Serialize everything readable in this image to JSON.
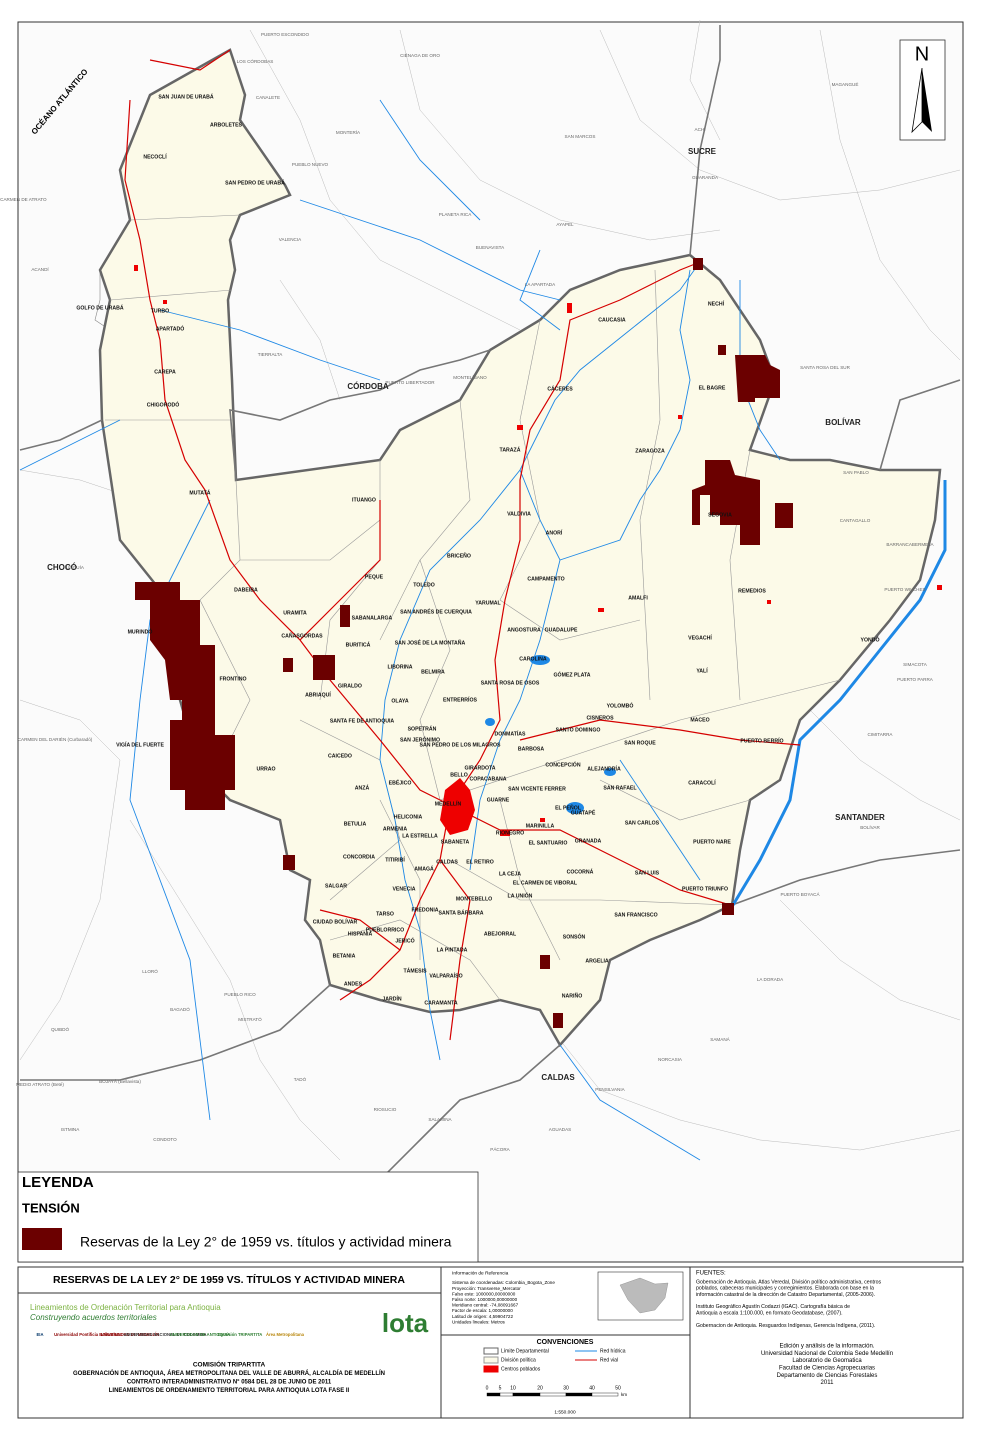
{
  "north_arrow": "N",
  "map": {
    "ocean": "OCÉANO ATLÁNTICO",
    "regions": [
      "CÓRDOBA",
      "SUCRE",
      "BOLÍVAR",
      "SANTANDER",
      "CALDAS",
      "CHOCÓ"
    ],
    "municipalities": [
      "SAN JUAN DE URABÁ",
      "ARBOLETES",
      "NECOCLÍ",
      "SAN PEDRO DE URABÁ",
      "GOLFO DE URABÁ",
      "TURBO",
      "APARTADÓ",
      "CAREPA",
      "CHIGORODÓ",
      "MUTATÁ",
      "DABEIBA",
      "URAMITA",
      "CAÑASGORDAS",
      "PEQUE",
      "ITUANGO",
      "TOLEDO",
      "BRICEÑO",
      "VALDIVIA",
      "TARAZÁ",
      "CÁCERES",
      "CAUCASIA",
      "NECHÍ",
      "EL BAGRE",
      "ZARAGOZA",
      "SEGOVIA",
      "ANORÍ",
      "CAMPAMENTO",
      "YARUMAL",
      "REMEDIOS",
      "AMALFI",
      "VEGACHÍ",
      "YALÍ",
      "YONDÓ",
      "GUADALUPE",
      "ANGOSTURA",
      "CAROLINA",
      "GÓMEZ PLATA",
      "SANTA ROSA DE OSOS",
      "YOLOMBÓ",
      "MACEO",
      "PUERTO BERRÍO",
      "CISNEROS",
      "SANTO DOMINGO",
      "SAN ROQUE",
      "CARACOLÍ",
      "DONMATÍAS",
      "BARBOSA",
      "CONCEPCIÓN",
      "ALEJANDRÍA",
      "SAN RAFAEL",
      "EL PEÑOL",
      "GUATAPÉ",
      "SAN CARLOS",
      "PUERTO NARE",
      "SAN LUIS",
      "PUERTO TRIUNFO",
      "SAN FRANCISCO",
      "COCORNÁ",
      "GRANADA",
      "MARINILLA",
      "RIONEGRO",
      "GUARNE",
      "SAN VICENTE FERRER",
      "MEDELLÍN",
      "BELLO",
      "COPACABANA",
      "GIRARDOTA",
      "LA ESTRELLA",
      "SABANETA",
      "CALDAS",
      "EL RETIRO",
      "LA CEJA",
      "EL SANTUARIO",
      "EL CARMEN DE VIBORAL",
      "LA UNIÓN",
      "SONSÓN",
      "ARGELIA",
      "NARIÑO",
      "ABEJORRAL",
      "MONTEBELLO",
      "SANTA BÁRBARA",
      "FREDONIA",
      "AMAGÁ",
      "TITIRIBÍ",
      "VENECIA",
      "HELICONIA",
      "ARMENIA",
      "EBÉJICO",
      "SOPETRÁN",
      "SAN JERÓNIMO",
      "SAN PEDRO DE LOS MILAGROS",
      "ENTRERRÍOS",
      "BELMIRA",
      "SAN JOSÉ DE LA MONTAÑA",
      "SAN ANDRÉS DE CUERQUIA",
      "SABANALARGA",
      "LIBORINA",
      "OLAYA",
      "BURITICÁ",
      "GIRALDO",
      "ABRIAQUÍ",
      "FRONTINO",
      "MURINDÓ",
      "VIGÍA DEL FUERTE",
      "URRAO",
      "SANTA FE DE ANTIOQUIA",
      "CAICEDO",
      "ANZÁ",
      "BETULIA",
      "CONCORDIA",
      "SALGAR",
      "CIUDAD BOLÍVAR",
      "HISPANIA",
      "BETANIA",
      "ANDES",
      "JARDÍN",
      "TÁMESIS",
      "VALPARAÍSO",
      "CARAMANTA",
      "LA PINTADA",
      "JERICÓ",
      "PUEBLORRICO",
      "TARSO"
    ],
    "outside_places": [
      "PUERTO ESCONDIDO",
      "LOS CÓRDOBAS",
      "CANALETE",
      "MONTERÍA",
      "CIÉNAGA DE ORO",
      "PLANETA RICA",
      "BUENAVISTA",
      "PUEBLO NUEVO",
      "TIERRALTA",
      "VALENCIA",
      "PUERTO LIBERTADOR",
      "MONTELÍBANO",
      "LA APARTADA",
      "AYAPEL",
      "SAN MARCOS",
      "GUARANDA",
      "ACHÍ",
      "MAGANGUÉ",
      "SANTA ROSA DEL SUR",
      "SAN PABLO",
      "CANTAGALLO",
      "BARRANCABERMEJA",
      "PUERTO WILCHES",
      "SIMACOTA",
      "CIMITARRA",
      "PUERTO PARRA",
      "BOLÍVAR",
      "PUERTO BOYACÁ",
      "LA DORADA",
      "SAMANÁ",
      "NORCASIA",
      "PENSILVANIA",
      "AGUADAS",
      "PÁCORA",
      "SALAMINA",
      "RIOSUCIO",
      "SUPÍA",
      "QUINCHÍA",
      "MISTRATÓ",
      "PUEBLO RICO",
      "BAGADÓ",
      "LLORÓ",
      "QUIBDÓ",
      "MEDIO ATRATO (Beté)",
      "BOJAYÁ (Bellavista)",
      "CARMEN DEL DARIÉN (Curbaradó)",
      "UNGUÍA",
      "ACANDÍ",
      "EL CARMEN DE ATRATO",
      "TADÓ",
      "CONDOTO",
      "ISTMINA"
    ]
  },
  "legend": {
    "title": "LEYENDA",
    "subtitle": "TENSIÓN",
    "item": "Reservas de la Ley 2° de 1959 vs. títulos y actividad minera"
  },
  "footer": {
    "title": "RESERVAS DE LA LEY 2° DE 1959 VS. TÍTULOS Y ACTIVIDAD MINERA",
    "project": "Lineamientos de Ordenación Territorial para Antioquia",
    "slogan": "Construyendo acuerdos territoriales",
    "logos": [
      "EIA",
      "Universidad Pontificia Bolivariana",
      "UNIVERSIDAD DE MEDELLÍN",
      "UNIVERSIDAD NACIONAL DE COLOMBIA",
      "UNIVERSIDAD DE ANTIOQUIA",
      "Comisión TRIPARTITA",
      "Área Metropolitana",
      "lota"
    ],
    "credits": [
      "COMISIÓN TRIPARTITA",
      "GOBERNACIÓN DE ANTIOQUIA, ÁREA METROPOLITANA DEL VALLE DE ABURRÁ, ALCALDÍA DE MEDELLÍN",
      "CONTRATO INTERADMINISTRATIVO  N° 0584 DEL 28 DE JUNIO DE 2011",
      "LINEAMIENTOS DE ORDENAMIENTO TERRITORIAL PARA ANTIOQUIA LOTA FASE II"
    ],
    "reference": {
      "title": "Información de Referencia",
      "lines": [
        "Sistema de coordenadas: Colombia_Bogota_Zone",
        "Proyección: Transverse_Mercator",
        "Falso este: 1000000,00000000",
        "Falso norte: 1000000,00000000",
        "Meridiano central: -74,08091667",
        "Factor de escala: 1,00000000",
        "Latitud de origen: 4,59904722",
        "Unidades lineales: Metros"
      ]
    },
    "conventions": {
      "title": "CONVENCIONES",
      "items": [
        "Límite Departamental",
        "División política",
        "Centros poblados",
        "Red hídrica",
        "Red vial"
      ]
    },
    "scale": {
      "labels": [
        "0",
        "5",
        "10",
        "20",
        "30",
        "40",
        "50"
      ],
      "unit": "km",
      "ratio": "1:550.000"
    },
    "sources": {
      "title": "FUENTES:",
      "entries": [
        [
          "Gobernación de Antioquia. Atlas Veredal, División político administrativa, centros",
          "poblados, cabeceras municipales y corregimientos. Elaborada con base en la",
          "información catastral de la dirección de Catastro Departamental, (2005-2006)."
        ],
        [
          "Instituto  Geográfico Agustín  Codazzi (IGAC). Cartografía básica de",
          "Antioquia  a escala 1:100.000, en formato Geodatabase, (2007)."
        ],
        [
          "Gobernacion de Antioquia. Resguardos Indígenas, Gerencia Indígena, (2011)."
        ]
      ]
    },
    "edition": [
      "Edición y análisis de la información.",
      "Universidad Nacional de Colombia Sede Medellín",
      "Laboratorio de Geomatica",
      "Facultad de Ciencias Agropecuarias",
      "Departamento de Ciencias Forestales",
      "2011"
    ]
  }
}
